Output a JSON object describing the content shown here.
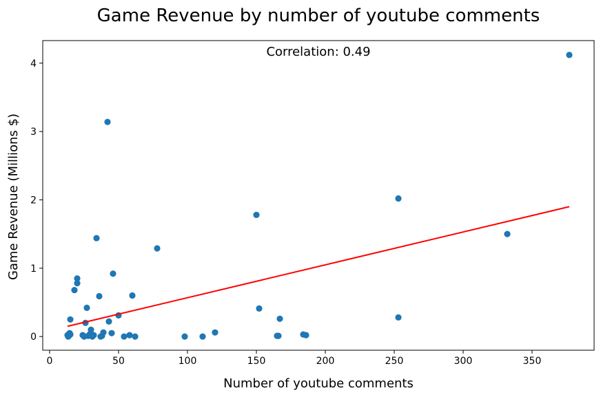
{
  "chart_data": {
    "type": "scatter",
    "title": "Game Revenue by number of youtube comments",
    "xlabel": "Number of youtube comments",
    "ylabel": "Game Revenue (Millions $)",
    "annotation": "Correlation: 0.49",
    "xlim": [
      -5,
      395
    ],
    "ylim": [
      -0.2,
      4.33
    ],
    "xticks": [
      0,
      50,
      100,
      150,
      200,
      250,
      300,
      350
    ],
    "yticks": [
      0,
      1,
      2,
      3,
      4
    ],
    "grid": false,
    "point_color": "#1f77b4",
    "trend_color": "#ff0000",
    "points": [
      {
        "x": 13,
        "y": 0.02
      },
      {
        "x": 13.5,
        "y": 0.0
      },
      {
        "x": 14,
        "y": 0.01
      },
      {
        "x": 14.5,
        "y": 0.05
      },
      {
        "x": 15,
        "y": 0.03
      },
      {
        "x": 15,
        "y": 0.25
      },
      {
        "x": 18,
        "y": 0.68
      },
      {
        "x": 20,
        "y": 0.78
      },
      {
        "x": 20,
        "y": 0.85
      },
      {
        "x": 24,
        "y": 0.02
      },
      {
        "x": 25,
        "y": 0.0
      },
      {
        "x": 26,
        "y": 0.2
      },
      {
        "x": 27,
        "y": 0.42
      },
      {
        "x": 28,
        "y": 0.01
      },
      {
        "x": 29,
        "y": 0.03
      },
      {
        "x": 30,
        "y": 0.1
      },
      {
        "x": 31,
        "y": 0.0
      },
      {
        "x": 32,
        "y": 0.02
      },
      {
        "x": 34,
        "y": 1.44
      },
      {
        "x": 36,
        "y": 0.59
      },
      {
        "x": 37,
        "y": 0.0
      },
      {
        "x": 38,
        "y": 0.01
      },
      {
        "x": 39,
        "y": 0.06
      },
      {
        "x": 42,
        "y": 3.14
      },
      {
        "x": 43,
        "y": 0.22
      },
      {
        "x": 45,
        "y": 0.05
      },
      {
        "x": 46,
        "y": 0.92
      },
      {
        "x": 50,
        "y": 0.31
      },
      {
        "x": 54,
        "y": 0.0
      },
      {
        "x": 58,
        "y": 0.02
      },
      {
        "x": 60,
        "y": 0.6
      },
      {
        "x": 62,
        "y": 0.0
      },
      {
        "x": 78,
        "y": 1.29
      },
      {
        "x": 98,
        "y": 0.0
      },
      {
        "x": 111,
        "y": 0.0
      },
      {
        "x": 120,
        "y": 0.06
      },
      {
        "x": 150,
        "y": 1.78
      },
      {
        "x": 152,
        "y": 0.41
      },
      {
        "x": 165,
        "y": 0.01
      },
      {
        "x": 166,
        "y": 0.01
      },
      {
        "x": 167,
        "y": 0.26
      },
      {
        "x": 184,
        "y": 0.03
      },
      {
        "x": 186,
        "y": 0.02
      },
      {
        "x": 253,
        "y": 2.02
      },
      {
        "x": 253,
        "y": 0.28
      },
      {
        "x": 332,
        "y": 1.5
      },
      {
        "x": 377,
        "y": 4.12
      }
    ],
    "trendline": {
      "x": [
        13,
        377
      ],
      "y": [
        0.15,
        1.9
      ]
    }
  }
}
